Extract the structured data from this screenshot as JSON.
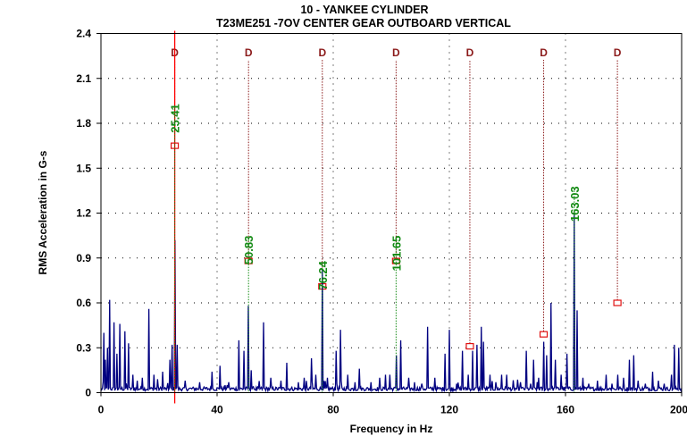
{
  "chart_data": {
    "type": "line",
    "title": "10   - YANKEE CYLINDER",
    "subtitle": "T23ME251  -7OV   CENTER GEAR OUTBOARD VERTICAL",
    "xlabel": "Frequency in Hz",
    "ylabel": "RMS Acceleration in G-s",
    "xlim": [
      0,
      200
    ],
    "ylim": [
      0,
      2.4
    ],
    "xticks": [
      0,
      40,
      80,
      120,
      160,
      200
    ],
    "yticks": [
      0,
      0.3,
      0.6,
      0.9,
      1.2,
      1.5,
      1.8,
      2.1,
      2.4
    ],
    "ytick_labels": [
      "0",
      "0.3",
      "0.6",
      "0.9",
      "1.2",
      "1.5",
      "1.8",
      "2.1",
      "2.4"
    ],
    "grid": "dotted",
    "cursor_x": 25.41,
    "fault_markers": [
      {
        "label": "D",
        "freq": 25.41,
        "marker_value": 1.65
      },
      {
        "label": "D",
        "freq": 50.83,
        "marker_value": 0.88
      },
      {
        "label": "D",
        "freq": 76.24,
        "marker_value": 0.71
      },
      {
        "label": "D",
        "freq": 101.65,
        "marker_value": 0.88
      },
      {
        "label": "D",
        "freq": 127.06,
        "marker_value": 0.31
      },
      {
        "label": "D",
        "freq": 152.47,
        "marker_value": 0.39
      },
      {
        "label": "D",
        "freq": 177.88,
        "marker_value": 0.6
      }
    ],
    "peak_labels": [
      {
        "text": "25.41",
        "freq": 25.41,
        "label_y": 1.93
      },
      {
        "text": "50.83",
        "freq": 50.83,
        "label_y": 1.05
      },
      {
        "text": "76.24",
        "freq": 76.24,
        "label_y": 0.88
      },
      {
        "text": "101.65",
        "freq": 101.65,
        "label_y": 1.05
      },
      {
        "text": "163.03",
        "freq": 163.03,
        "label_y": 1.38
      }
    ],
    "peaks": [
      {
        "f": 0.9,
        "a": 0.4
      },
      {
        "f": 1.6,
        "a": 0.22
      },
      {
        "f": 2.3,
        "a": 0.3
      },
      {
        "f": 3.1,
        "a": 0.62
      },
      {
        "f": 4.4,
        "a": 0.47
      },
      {
        "f": 5.5,
        "a": 0.26
      },
      {
        "f": 6.5,
        "a": 0.46
      },
      {
        "f": 8.3,
        "a": 0.41
      },
      {
        "f": 9.5,
        "a": 0.33
      },
      {
        "f": 11.0,
        "a": 0.12
      },
      {
        "f": 12.5,
        "a": 0.08
      },
      {
        "f": 14.2,
        "a": 0.1
      },
      {
        "f": 16.4,
        "a": 0.56
      },
      {
        "f": 18.2,
        "a": 0.12
      },
      {
        "f": 19.4,
        "a": 0.09
      },
      {
        "f": 21.3,
        "a": 0.14
      },
      {
        "f": 23.8,
        "a": 0.22
      },
      {
        "f": 24.6,
        "a": 0.32
      },
      {
        "f": 25.41,
        "a": 1.02
      },
      {
        "f": 26.2,
        "a": 0.32
      },
      {
        "f": 29.0,
        "a": 0.08
      },
      {
        "f": 34.0,
        "a": 0.07
      },
      {
        "f": 38.3,
        "a": 0.14
      },
      {
        "f": 41.0,
        "a": 0.18
      },
      {
        "f": 44.0,
        "a": 0.07
      },
      {
        "f": 47.5,
        "a": 0.35
      },
      {
        "f": 49.3,
        "a": 0.28
      },
      {
        "f": 50.83,
        "a": 0.58
      },
      {
        "f": 51.8,
        "a": 0.15
      },
      {
        "f": 56.0,
        "a": 0.47
      },
      {
        "f": 58.5,
        "a": 0.1
      },
      {
        "f": 62.0,
        "a": 0.08
      },
      {
        "f": 64.0,
        "a": 0.2
      },
      {
        "f": 68.0,
        "a": 0.07
      },
      {
        "f": 70.0,
        "a": 0.1
      },
      {
        "f": 72.5,
        "a": 0.23
      },
      {
        "f": 74.0,
        "a": 0.12
      },
      {
        "f": 76.24,
        "a": 0.82
      },
      {
        "f": 78.0,
        "a": 0.1
      },
      {
        "f": 81.0,
        "a": 0.28
      },
      {
        "f": 82.5,
        "a": 0.42
      },
      {
        "f": 85.0,
        "a": 0.12
      },
      {
        "f": 87.5,
        "a": 0.07
      },
      {
        "f": 89.0,
        "a": 0.16
      },
      {
        "f": 93.0,
        "a": 0.07
      },
      {
        "f": 96.0,
        "a": 0.1
      },
      {
        "f": 98.0,
        "a": 0.12
      },
      {
        "f": 99.5,
        "a": 0.12
      },
      {
        "f": 101.65,
        "a": 0.25
      },
      {
        "f": 103.2,
        "a": 0.35
      },
      {
        "f": 106.0,
        "a": 0.1
      },
      {
        "f": 108.0,
        "a": 0.07
      },
      {
        "f": 110.5,
        "a": 0.06
      },
      {
        "f": 112.5,
        "a": 0.44
      },
      {
        "f": 115.0,
        "a": 0.1
      },
      {
        "f": 118.5,
        "a": 0.26
      },
      {
        "f": 120.0,
        "a": 0.42
      },
      {
        "f": 122.5,
        "a": 0.06
      },
      {
        "f": 124.5,
        "a": 0.28
      },
      {
        "f": 126.5,
        "a": 0.12
      },
      {
        "f": 128.0,
        "a": 0.28
      },
      {
        "f": 129.5,
        "a": 0.32
      },
      {
        "f": 131.0,
        "a": 0.44
      },
      {
        "f": 131.8,
        "a": 0.34
      },
      {
        "f": 134.0,
        "a": 0.12
      },
      {
        "f": 136.0,
        "a": 0.07
      },
      {
        "f": 138.0,
        "a": 0.12
      },
      {
        "f": 139.8,
        "a": 0.12
      },
      {
        "f": 142.0,
        "a": 0.06
      },
      {
        "f": 144.5,
        "a": 0.07
      },
      {
        "f": 146.5,
        "a": 0.28
      },
      {
        "f": 148.0,
        "a": 0.06
      },
      {
        "f": 149.0,
        "a": 0.22
      },
      {
        "f": 150.8,
        "a": 0.1
      },
      {
        "f": 152.47,
        "a": 0.34
      },
      {
        "f": 153.5,
        "a": 0.25
      },
      {
        "f": 155.0,
        "a": 0.6
      },
      {
        "f": 156.5,
        "a": 0.22
      },
      {
        "f": 158.5,
        "a": 0.12
      },
      {
        "f": 160.5,
        "a": 0.26
      },
      {
        "f": 163.03,
        "a": 1.19
      },
      {
        "f": 164.0,
        "a": 0.55
      },
      {
        "f": 166.0,
        "a": 0.1
      },
      {
        "f": 168.0,
        "a": 0.06
      },
      {
        "f": 171.0,
        "a": 0.08
      },
      {
        "f": 174.0,
        "a": 0.12
      },
      {
        "f": 176.0,
        "a": 0.06
      },
      {
        "f": 177.88,
        "a": 0.12
      },
      {
        "f": 180.0,
        "a": 0.1
      },
      {
        "f": 182.0,
        "a": 0.22
      },
      {
        "f": 183.5,
        "a": 0.25
      },
      {
        "f": 185.0,
        "a": 0.08
      },
      {
        "f": 187.5,
        "a": 0.06
      },
      {
        "f": 190.0,
        "a": 0.14
      },
      {
        "f": 192.0,
        "a": 0.08
      },
      {
        "f": 194.0,
        "a": 0.06
      },
      {
        "f": 196.5,
        "a": 0.12
      },
      {
        "f": 197.5,
        "a": 0.32
      },
      {
        "f": 199.0,
        "a": 0.3
      }
    ],
    "noise_floor": 0.03,
    "colors": {
      "spectrum": "#000080",
      "fault_line": "#8b1a1a",
      "fault_marker": "#e01010",
      "cursor": "#ff0000",
      "peak_label": "#138a13",
      "peak_line": "#138a13"
    }
  }
}
